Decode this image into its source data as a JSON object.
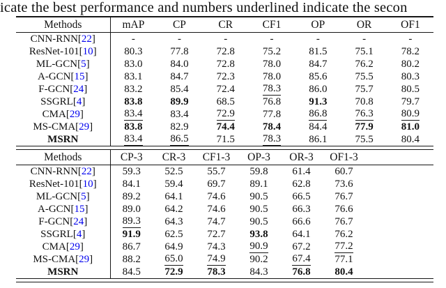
{
  "caption": "icate the best performance and numbers underlined indicate the secon",
  "meta": {
    "cite_open": "[",
    "cite_close": "]"
  },
  "colors": {
    "citation_blue": "#0000EE",
    "text": "#111111",
    "rule": "#151515",
    "background": "#ffffff"
  },
  "table_all_labels": {
    "headers": [
      "Methods",
      "mAP",
      "CP",
      "CR",
      "CF1",
      "OP",
      "OR",
      "OF1"
    ],
    "rows": [
      {
        "method": "CNN-RNN",
        "cite": "22",
        "bold": false,
        "cells": [
          [
            "-",
            ""
          ],
          [
            "-",
            ""
          ],
          [
            "-",
            ""
          ],
          [
            "-",
            ""
          ],
          [
            "-",
            ""
          ],
          [
            "-",
            ""
          ],
          [
            "-",
            ""
          ]
        ]
      },
      {
        "method": "ResNet-101",
        "cite": "10",
        "bold": false,
        "cells": [
          [
            "80.3",
            ""
          ],
          [
            "77.8",
            ""
          ],
          [
            "72.8",
            ""
          ],
          [
            "75.2",
            ""
          ],
          [
            "81.5",
            ""
          ],
          [
            "75.1",
            ""
          ],
          [
            "78.2",
            ""
          ]
        ]
      },
      {
        "method": "ML-GCN",
        "cite": "5",
        "bold": false,
        "cells": [
          [
            "83.0",
            ""
          ],
          [
            "84.0",
            ""
          ],
          [
            "72.8",
            ""
          ],
          [
            "78.0",
            ""
          ],
          [
            "84.7",
            ""
          ],
          [
            "76.2",
            ""
          ],
          [
            "80.2",
            ""
          ]
        ]
      },
      {
        "method": "A-GCN",
        "cite": "15",
        "bold": false,
        "cells": [
          [
            "83.1",
            ""
          ],
          [
            "84.7",
            ""
          ],
          [
            "72.3",
            ""
          ],
          [
            "78.0",
            ""
          ],
          [
            "85.6",
            ""
          ],
          [
            "75.5",
            ""
          ],
          [
            "80.3",
            ""
          ]
        ]
      },
      {
        "method": "F-GCN",
        "cite": "24",
        "bold": false,
        "cells": [
          [
            "83.2",
            ""
          ],
          [
            "85.4",
            ""
          ],
          [
            "72.4",
            ""
          ],
          [
            "78.3",
            "u"
          ],
          [
            "86.0",
            ""
          ],
          [
            "75.7",
            ""
          ],
          [
            "80.5",
            ""
          ]
        ]
      },
      {
        "method": "SSGRL",
        "cite": "4",
        "bold": false,
        "cells": [
          [
            "83.8",
            "b"
          ],
          [
            "89.9",
            "b"
          ],
          [
            "68.5",
            ""
          ],
          [
            "76.8",
            ""
          ],
          [
            "91.3",
            "b"
          ],
          [
            "70.8",
            ""
          ],
          [
            "79.7",
            ""
          ]
        ]
      },
      {
        "method": "CMA",
        "cite": "29",
        "bold": false,
        "cells": [
          [
            "83.4",
            "u"
          ],
          [
            "83.4",
            ""
          ],
          [
            "72.9",
            "u"
          ],
          [
            "77.8",
            ""
          ],
          [
            "86.8",
            "u"
          ],
          [
            "76.3",
            "u"
          ],
          [
            "80.9",
            "u"
          ]
        ]
      },
      {
        "method": "MS-CMA",
        "cite": "29",
        "bold": false,
        "cells": [
          [
            "83.8",
            "b"
          ],
          [
            "82.9",
            ""
          ],
          [
            "74.4",
            "b"
          ],
          [
            "78.4",
            "b"
          ],
          [
            "84.4",
            ""
          ],
          [
            "77.9",
            "b"
          ],
          [
            "81.0",
            "b"
          ]
        ]
      },
      {
        "method": "MSRN",
        "cite": "",
        "bold": true,
        "cells": [
          [
            "83.4",
            "u"
          ],
          [
            "86.5",
            "u"
          ],
          [
            "71.5",
            ""
          ],
          [
            "78.3",
            "u"
          ],
          [
            "86.1",
            ""
          ],
          [
            "75.5",
            ""
          ],
          [
            "80.4",
            ""
          ]
        ]
      }
    ]
  },
  "table_top3": {
    "headers": [
      "Methods",
      "CP-3",
      "CR-3",
      "CF1-3",
      "OP-3",
      "OR-3",
      "OF1-3"
    ],
    "rows": [
      {
        "method": "CNN-RNN",
        "cite": "22",
        "bold": false,
        "cells": [
          [
            "59.3",
            ""
          ],
          [
            "52.5",
            ""
          ],
          [
            "55.7",
            ""
          ],
          [
            "59.8",
            ""
          ],
          [
            "61.4",
            ""
          ],
          [
            "60.7",
            ""
          ]
        ]
      },
      {
        "method": "ResNet-101",
        "cite": "10",
        "bold": false,
        "cells": [
          [
            "84.1",
            ""
          ],
          [
            "59.4",
            ""
          ],
          [
            "69.7",
            ""
          ],
          [
            "89.1",
            ""
          ],
          [
            "62.8",
            ""
          ],
          [
            "73.6",
            ""
          ]
        ]
      },
      {
        "method": "ML-GCN",
        "cite": "5",
        "bold": false,
        "cells": [
          [
            "89.2",
            ""
          ],
          [
            "64.1",
            ""
          ],
          [
            "74.6",
            ""
          ],
          [
            "90.5",
            ""
          ],
          [
            "66.5",
            ""
          ],
          [
            "76.7",
            ""
          ]
        ]
      },
      {
        "method": "A-GCN",
        "cite": "15",
        "bold": false,
        "cells": [
          [
            "89.0",
            ""
          ],
          [
            "64.2",
            ""
          ],
          [
            "74.6",
            ""
          ],
          [
            "90.5",
            ""
          ],
          [
            "66.3",
            ""
          ],
          [
            "76.6",
            ""
          ]
        ]
      },
      {
        "method": "F-GCN",
        "cite": "24",
        "bold": false,
        "cells": [
          [
            "89.3",
            "u"
          ],
          [
            "64.3",
            ""
          ],
          [
            "74.7",
            ""
          ],
          [
            "90.5",
            ""
          ],
          [
            "66.6",
            ""
          ],
          [
            "76.7",
            ""
          ]
        ]
      },
      {
        "method": "SSGRL",
        "cite": "4",
        "bold": false,
        "cells": [
          [
            "91.9",
            "b"
          ],
          [
            "62.5",
            ""
          ],
          [
            "72.7",
            ""
          ],
          [
            "93.8",
            "b"
          ],
          [
            "64.1",
            ""
          ],
          [
            "76.2",
            ""
          ]
        ]
      },
      {
        "method": "CMA",
        "cite": "29",
        "bold": false,
        "cells": [
          [
            "86.7",
            ""
          ],
          [
            "64.9",
            ""
          ],
          [
            "74.3",
            ""
          ],
          [
            "90.9",
            "u"
          ],
          [
            "67.2",
            ""
          ],
          [
            "77.2",
            "u"
          ]
        ]
      },
      {
        "method": "MS-CMA",
        "cite": "29",
        "bold": false,
        "cells": [
          [
            "88.2",
            ""
          ],
          [
            "65.0",
            "u"
          ],
          [
            "74.9",
            "u"
          ],
          [
            "90.2",
            ""
          ],
          [
            "67.4",
            "u"
          ],
          [
            "77.1",
            ""
          ]
        ]
      },
      {
        "method": "MSRN",
        "cite": "",
        "bold": true,
        "cells": [
          [
            "84.5",
            ""
          ],
          [
            "72.9",
            "b"
          ],
          [
            "78.3",
            "b"
          ],
          [
            "84.3",
            ""
          ],
          [
            "76.8",
            "b"
          ],
          [
            "80.4",
            "b"
          ]
        ]
      }
    ]
  }
}
